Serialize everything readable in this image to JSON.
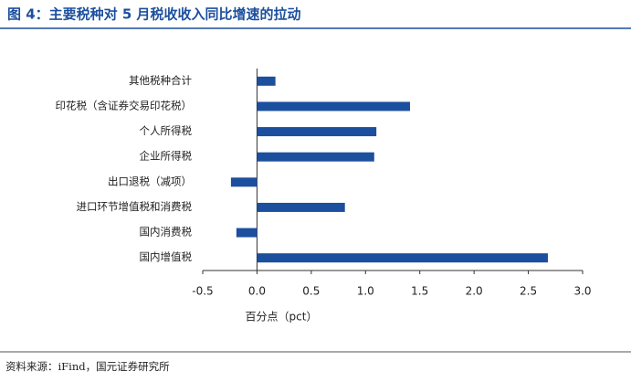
{
  "header": {
    "title": "图 4：主要税种对 5 月税收收入同比增速的拉动"
  },
  "chart_data": {
    "type": "barh",
    "categories": [
      "其他税种合计",
      "印花税（含证券交易印花税）",
      "个人所得税",
      "企业所得税",
      "出口退税（减项）",
      "进口环节增值税和消费税",
      "国内消费税",
      "国内增值税"
    ],
    "values": [
      0.17,
      1.41,
      1.1,
      1.08,
      -0.24,
      0.81,
      -0.19,
      2.68
    ],
    "color": "#1c4f9e",
    "xlabel": "百分点（pct）",
    "xlim": [
      -0.5,
      3.0
    ],
    "xticks": [
      -0.5,
      {
        "value": 0,
        "label": "0.0"
      },
      0.5,
      {
        "value": 1,
        "label": "1.0"
      },
      1.5,
      {
        "value": 2,
        "label": "2.0"
      },
      2.5,
      {
        "value": 3,
        "label": "3.0"
      }
    ]
  },
  "footer": {
    "source": "资料来源：iFind，国元证券研究所"
  }
}
